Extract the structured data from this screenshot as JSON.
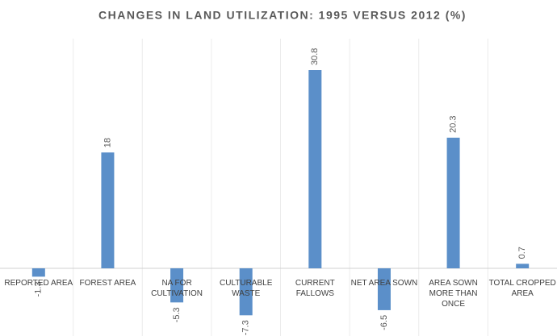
{
  "chart_data": {
    "type": "bar",
    "title": "CHANGES IN LAND UTILIZATION: 1995 VERSUS 2012 (%)",
    "categories": [
      "REPORTED AREA",
      "FOREST AREA",
      "NA FOR CULTIVATION",
      "CULTURABLE WASTE",
      "CURRENT FALLOWS",
      "NET AREA SOWN",
      "AREA SOWN MORE THAN ONCE",
      "TOTAL CROPPED AREA"
    ],
    "values": [
      -1.3,
      18,
      -5.3,
      -7.3,
      30.8,
      -6.5,
      20.3,
      0.7
    ],
    "color": "#5b8fc9"
  }
}
